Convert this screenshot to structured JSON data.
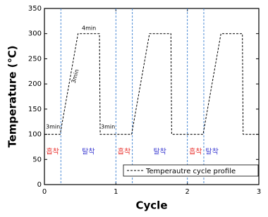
{
  "chart_data": {
    "type": "line",
    "xlabel": "Cycle",
    "ylabel": "Temperature (℃)",
    "x": [
      0,
      0.22,
      0.47,
      0.77,
      0.78,
      1.22,
      1.47,
      1.77,
      1.78,
      2.22,
      2.47,
      2.77,
      2.78,
      3
    ],
    "series": [
      {
        "name": "Temperautre cycle profile",
        "color": "#000000",
        "values": [
          100,
          100,
          300,
          300,
          100,
          100,
          300,
          300,
          100,
          100,
          300,
          300,
          100,
          100
        ]
      }
    ],
    "vlines": [
      0.23,
      1.0,
      1.23,
      2.0,
      2.23
    ],
    "vline_color": "#3b7fd0",
    "phase_labels": [
      "흡착",
      "탈착",
      "흡착",
      "탈착",
      "흡착",
      "탈착"
    ],
    "phase_colors": [
      "#e8322e",
      "#3a3ad0",
      "#e8322e",
      "#3a3ad0",
      "#e8322e",
      "#3a3ad0"
    ],
    "annotations": [
      "3min",
      "4min",
      "3min",
      "3min"
    ],
    "xlim": [
      0,
      3
    ],
    "xticks": [
      0,
      1,
      2,
      3
    ],
    "ylim": [
      0,
      350
    ],
    "yticks": [
      0,
      50,
      100,
      150,
      200,
      250,
      300,
      350
    ],
    "legend": "lower right"
  }
}
